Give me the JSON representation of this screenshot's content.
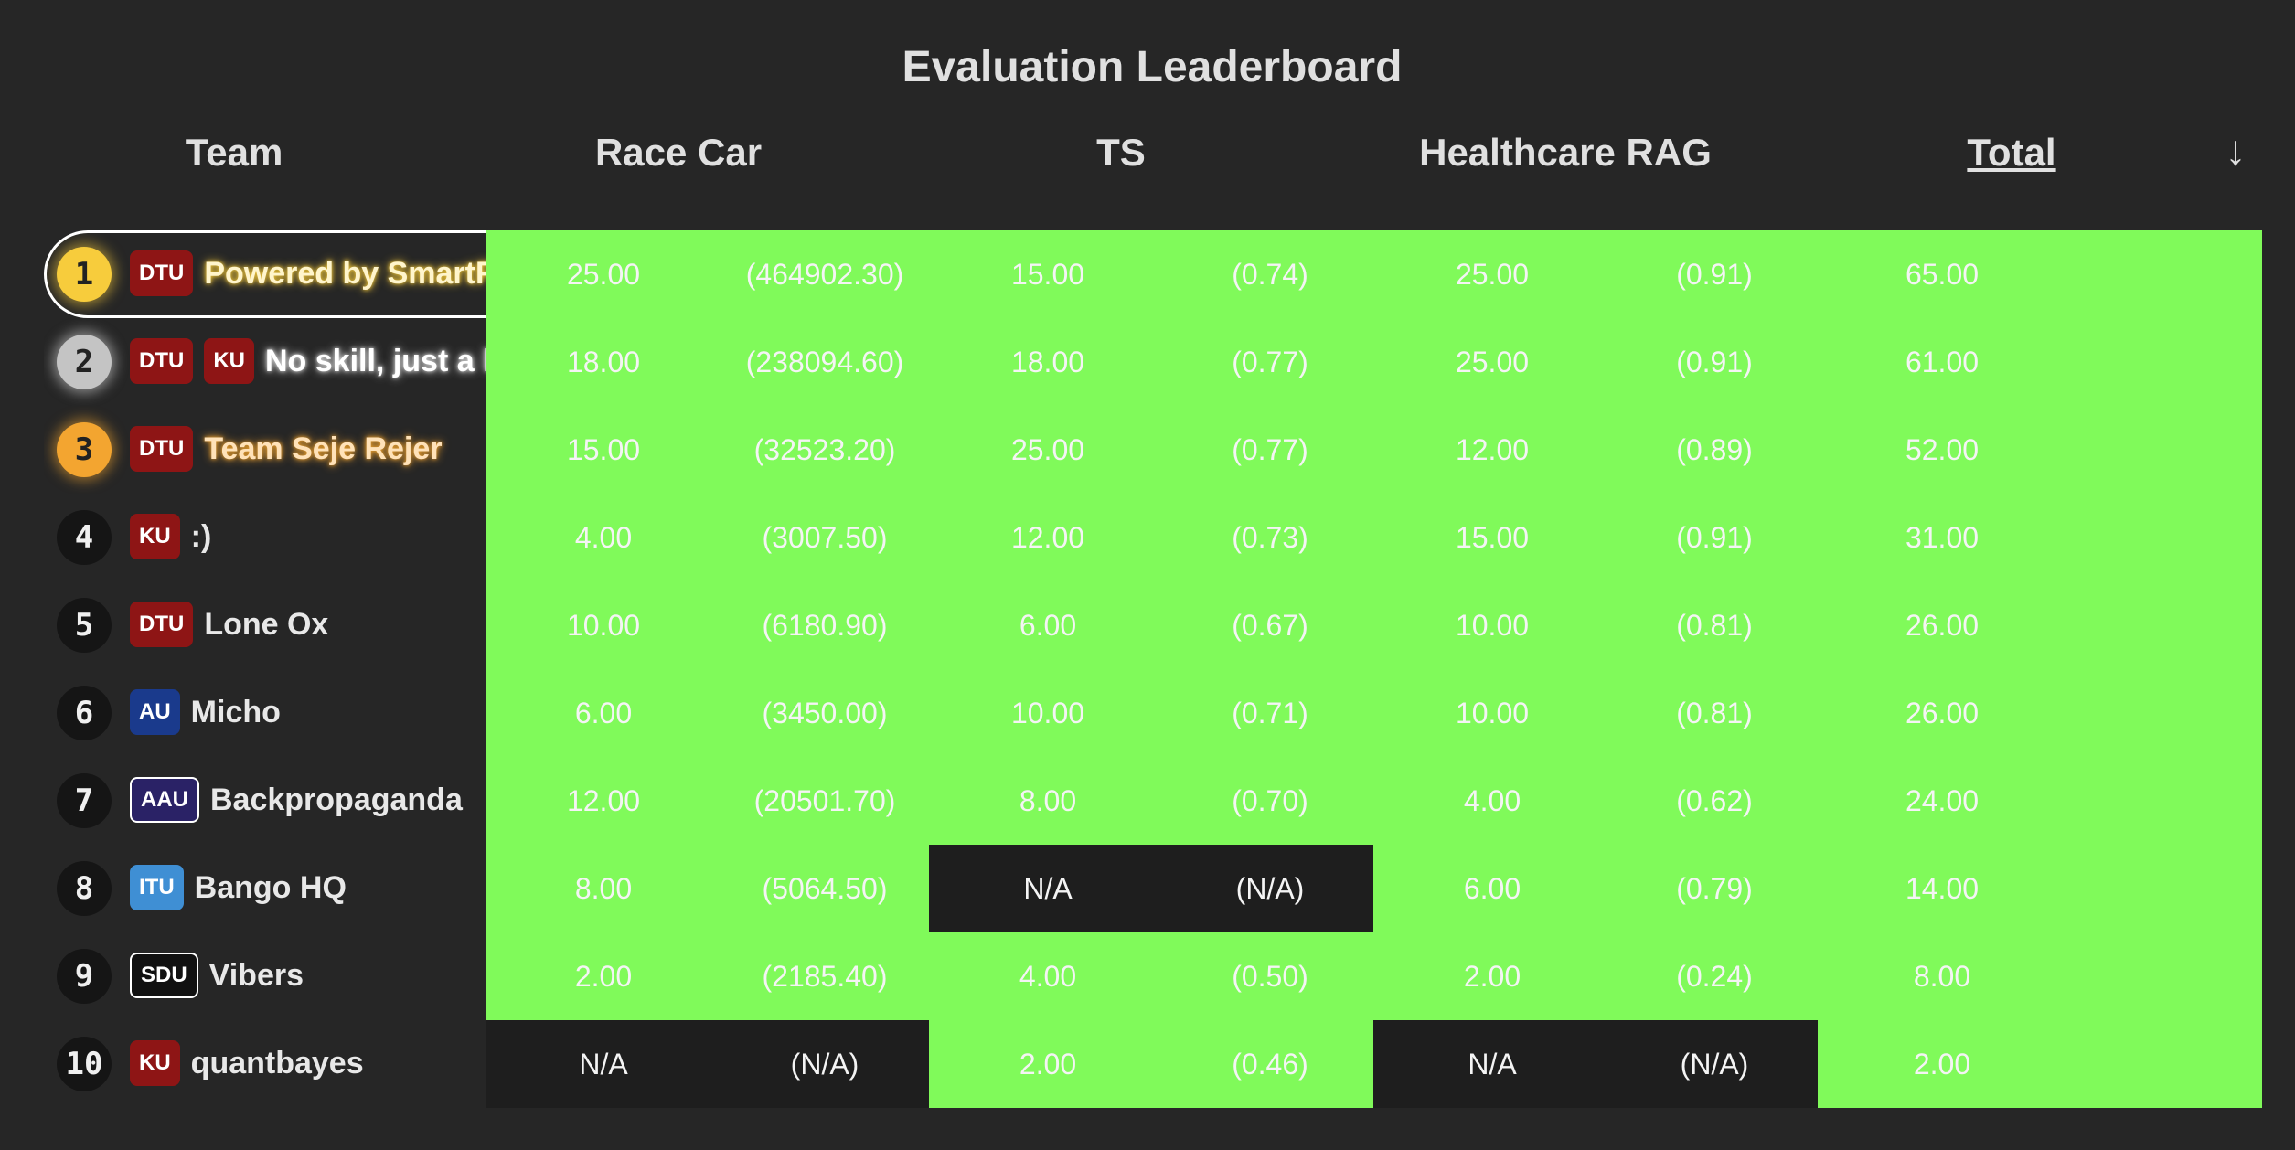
{
  "title": "Evaluation Leaderboard",
  "headers": {
    "team": "Team",
    "race_car": "Race Car",
    "ts": "TS",
    "healthcare_rag": "Healthcare RAG",
    "total": "Total",
    "sort_indicator": "↓"
  },
  "colors": {
    "background": "#262626",
    "score_cell": "#80fa5a",
    "na_cell": "#1e1e1e",
    "gold": "#f7cc3c",
    "silver": "#c4c4c4",
    "bronze": "#f3a530"
  },
  "rows": [
    {
      "rank": "1",
      "badges": [
        "DTU"
      ],
      "team": "Powered by SmartFr",
      "race_score": "25.00",
      "race_raw": "(464902.30)",
      "ts_score": "15.00",
      "ts_raw": "(0.74)",
      "rag_score": "25.00",
      "rag_raw": "(0.91)",
      "total": "65.00"
    },
    {
      "rank": "2",
      "badges": [
        "DTU",
        "KU"
      ],
      "team": "No skill, just a lu",
      "race_score": "18.00",
      "race_raw": "(238094.60)",
      "ts_score": "18.00",
      "ts_raw": "(0.77)",
      "rag_score": "25.00",
      "rag_raw": "(0.91)",
      "total": "61.00"
    },
    {
      "rank": "3",
      "badges": [
        "DTU"
      ],
      "team": "Team Seje Rejer",
      "race_score": "15.00",
      "race_raw": "(32523.20)",
      "ts_score": "25.00",
      "ts_raw": "(0.77)",
      "rag_score": "12.00",
      "rag_raw": "(0.89)",
      "total": "52.00"
    },
    {
      "rank": "4",
      "badges": [
        "KU"
      ],
      "team": ":)",
      "race_score": "4.00",
      "race_raw": "(3007.50)",
      "ts_score": "12.00",
      "ts_raw": "(0.73)",
      "rag_score": "15.00",
      "rag_raw": "(0.91)",
      "total": "31.00"
    },
    {
      "rank": "5",
      "badges": [
        "DTU"
      ],
      "team": "Lone Ox",
      "race_score": "10.00",
      "race_raw": "(6180.90)",
      "ts_score": "6.00",
      "ts_raw": "(0.67)",
      "rag_score": "10.00",
      "rag_raw": "(0.81)",
      "total": "26.00"
    },
    {
      "rank": "6",
      "badges": [
        "AU"
      ],
      "team": "Micho",
      "race_score": "6.00",
      "race_raw": "(3450.00)",
      "ts_score": "10.00",
      "ts_raw": "(0.71)",
      "rag_score": "10.00",
      "rag_raw": "(0.81)",
      "total": "26.00"
    },
    {
      "rank": "7",
      "badges": [
        "AAU"
      ],
      "team": "Backpropaganda",
      "race_score": "12.00",
      "race_raw": "(20501.70)",
      "ts_score": "8.00",
      "ts_raw": "(0.70)",
      "rag_score": "4.00",
      "rag_raw": "(0.62)",
      "total": "24.00"
    },
    {
      "rank": "8",
      "badges": [
        "ITU"
      ],
      "team": "Bango HQ",
      "race_score": "8.00",
      "race_raw": "(5064.50)",
      "ts_score": "N/A",
      "ts_raw": "(N/A)",
      "rag_score": "6.00",
      "rag_raw": "(0.79)",
      "total": "14.00"
    },
    {
      "rank": "9",
      "badges": [
        "SDU"
      ],
      "team": "Vibers",
      "race_score": "2.00",
      "race_raw": "(2185.40)",
      "ts_score": "4.00",
      "ts_raw": "(0.50)",
      "rag_score": "2.00",
      "rag_raw": "(0.24)",
      "total": "8.00"
    },
    {
      "rank": "10",
      "badges": [
        "KU"
      ],
      "team": "quantbayes",
      "race_score": "N/A",
      "race_raw": "(N/A)",
      "ts_score": "2.00",
      "ts_raw": "(0.46)",
      "rag_score": "N/A",
      "rag_raw": "(N/A)",
      "total": "2.00"
    }
  ]
}
